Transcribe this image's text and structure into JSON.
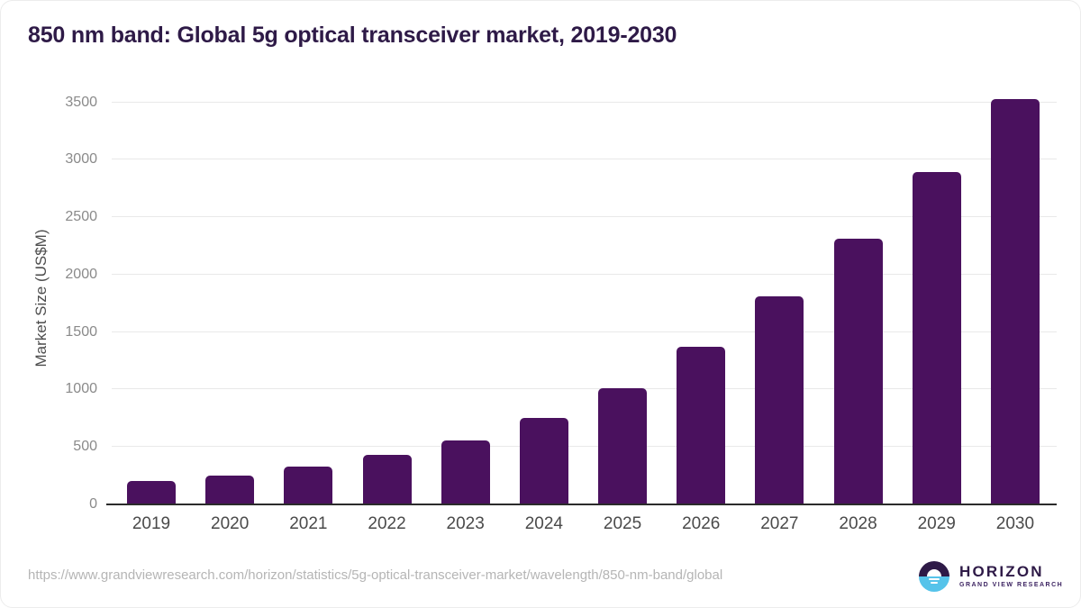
{
  "header": {
    "title": "850 nm band: Global 5g optical transceiver market, 2019-2030"
  },
  "chart_data": {
    "type": "bar",
    "title": "850 nm band: Global 5g optical transceiver market, 2019-2030",
    "categories": [
      "2019",
      "2020",
      "2021",
      "2022",
      "2023",
      "2024",
      "2025",
      "2026",
      "2027",
      "2028",
      "2029",
      "2030"
    ],
    "values": [
      205,
      250,
      330,
      430,
      560,
      750,
      1015,
      1370,
      1810,
      2315,
      2890,
      3530
    ],
    "xlabel": "",
    "ylabel": "Market Size (US$M)",
    "yticks": [
      0,
      500,
      1000,
      1500,
      2000,
      2500,
      3000,
      3500
    ],
    "ylim": [
      0,
      3560
    ],
    "grid": true,
    "legend": false,
    "bar_color": "#4a115e"
  },
  "colors": {
    "title": "#2e1a47",
    "bar": "#4a115e",
    "gridline": "#e9e9e9",
    "axis_line": "#2b2b2b",
    "y_tick_label": "#8a8a8a",
    "x_tick_label": "#4a4a4a",
    "url_text": "#b5b5b5",
    "logo_dark_purple": "#2e1a47",
    "logo_light_blue": "#55c3ea"
  },
  "footer": {
    "source_url": "https://www.grandviewresearch.com/horizon/statistics/5g-optical-transceiver-market/wavelength/850-nm-band/global",
    "logo": {
      "name": "HORIZON",
      "subtitle": "GRAND VIEW RESEARCH"
    }
  }
}
